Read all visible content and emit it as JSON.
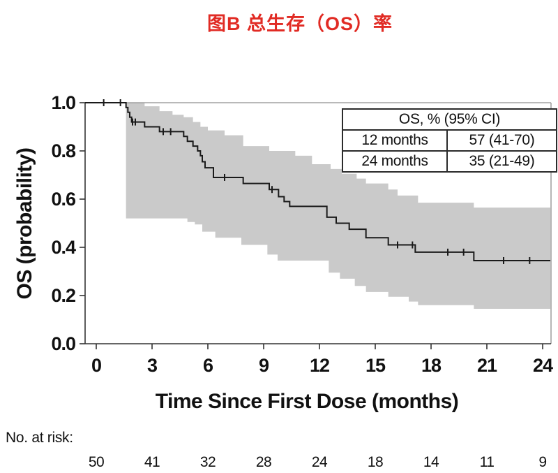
{
  "title": "图B 总生存（OS）率",
  "colors": {
    "title_red": "#e12b24",
    "band_gray": "#cacaca",
    "curve_black": "#1a1a1a",
    "axis_black": "#333333",
    "frame_gray": "#8f8f8f",
    "background": "#ffffff"
  },
  "chart_data": {
    "type": "line",
    "subtype": "kaplan-meier-step",
    "title": "图B 总生存（OS）率",
    "xlabel": "Time Since First Dose (months)",
    "ylabel": "OS (probability)",
    "xlim": [
      0,
      24.5
    ],
    "ylim": [
      0.0,
      1.0
    ],
    "x_ticks": [
      0,
      3,
      6,
      9,
      12,
      15,
      18,
      21,
      24
    ],
    "y_ticks": [
      1.0,
      0.8,
      0.6,
      0.4,
      0.2,
      0.0
    ],
    "y_tick_labels": [
      "1.0",
      "0.8",
      "0.6",
      "0.4",
      "0.2",
      "0.0"
    ],
    "grid": false,
    "series": [
      {
        "name": "OS",
        "steps": [
          [
            0,
            1.0
          ],
          [
            1.6,
            0.98
          ],
          [
            1.7,
            0.96
          ],
          [
            1.8,
            0.94
          ],
          [
            1.9,
            0.92
          ],
          [
            2.6,
            0.9
          ],
          [
            3.4,
            0.88
          ],
          [
            4.7,
            0.86
          ],
          [
            4.9,
            0.84
          ],
          [
            5.2,
            0.82
          ],
          [
            5.45,
            0.8
          ],
          [
            5.6,
            0.78
          ],
          [
            5.7,
            0.755
          ],
          [
            5.85,
            0.73
          ],
          [
            6.3,
            0.69
          ],
          [
            7.9,
            0.665
          ],
          [
            9.3,
            0.64
          ],
          [
            9.8,
            0.61
          ],
          [
            10.1,
            0.59
          ],
          [
            10.4,
            0.57
          ],
          [
            12.4,
            0.525
          ],
          [
            12.9,
            0.5
          ],
          [
            13.6,
            0.475
          ],
          [
            14.5,
            0.44
          ],
          [
            15.7,
            0.41
          ],
          [
            17.15,
            0.38
          ],
          [
            20.3,
            0.345
          ]
        ],
        "end_month": 24.5
      }
    ],
    "censor_marks": [
      [
        0.4,
        1.0
      ],
      [
        1.3,
        1.0
      ],
      [
        1.95,
        0.92
      ],
      [
        2.1,
        0.92
      ],
      [
        3.6,
        0.88
      ],
      [
        4.0,
        0.88
      ],
      [
        6.9,
        0.69
      ],
      [
        9.45,
        0.64
      ],
      [
        16.2,
        0.41
      ],
      [
        17.0,
        0.41
      ],
      [
        18.9,
        0.38
      ],
      [
        19.75,
        0.38
      ],
      [
        21.9,
        0.345
      ],
      [
        23.3,
        0.345
      ]
    ],
    "ci_band": {
      "upper": [
        [
          1.6,
          1.0
        ],
        [
          2.6,
          0.985
        ],
        [
          3.4,
          0.965
        ],
        [
          4.1,
          0.95
        ],
        [
          4.7,
          0.94
        ],
        [
          5.2,
          0.92
        ],
        [
          5.6,
          0.9
        ],
        [
          6.0,
          0.885
        ],
        [
          6.9,
          0.865
        ],
        [
          7.9,
          0.82
        ],
        [
          9.3,
          0.8
        ],
        [
          10.7,
          0.78
        ],
        [
          11.6,
          0.745
        ],
        [
          12.6,
          0.725
        ],
        [
          13.2,
          0.705
        ],
        [
          14.0,
          0.685
        ],
        [
          14.5,
          0.665
        ],
        [
          15.7,
          0.64
        ],
        [
          16.2,
          0.615
        ],
        [
          17.3,
          0.585
        ],
        [
          20.3,
          0.565
        ]
      ],
      "lower": [
        [
          1.6,
          0.52
        ],
        [
          4.9,
          0.505
        ],
        [
          5.3,
          0.495
        ],
        [
          5.7,
          0.465
        ],
        [
          6.4,
          0.44
        ],
        [
          7.8,
          0.41
        ],
        [
          9.2,
          0.37
        ],
        [
          9.75,
          0.345
        ],
        [
          12.5,
          0.295
        ],
        [
          13.1,
          0.27
        ],
        [
          13.9,
          0.24
        ],
        [
          14.5,
          0.215
        ],
        [
          15.7,
          0.195
        ],
        [
          16.8,
          0.175
        ],
        [
          17.3,
          0.16
        ],
        [
          20.3,
          0.145
        ]
      ],
      "end_month": 24.5
    },
    "inset_table": {
      "header": "OS, % (95% CI)",
      "rows": [
        {
          "label": "12 months",
          "value": "57 (41-70)"
        },
        {
          "label": "24 months",
          "value": "35 (21-49)"
        }
      ]
    },
    "risk_table": {
      "label": "No. at risk:",
      "values": [
        50,
        41,
        32,
        28,
        24,
        18,
        14,
        11,
        9
      ]
    }
  }
}
